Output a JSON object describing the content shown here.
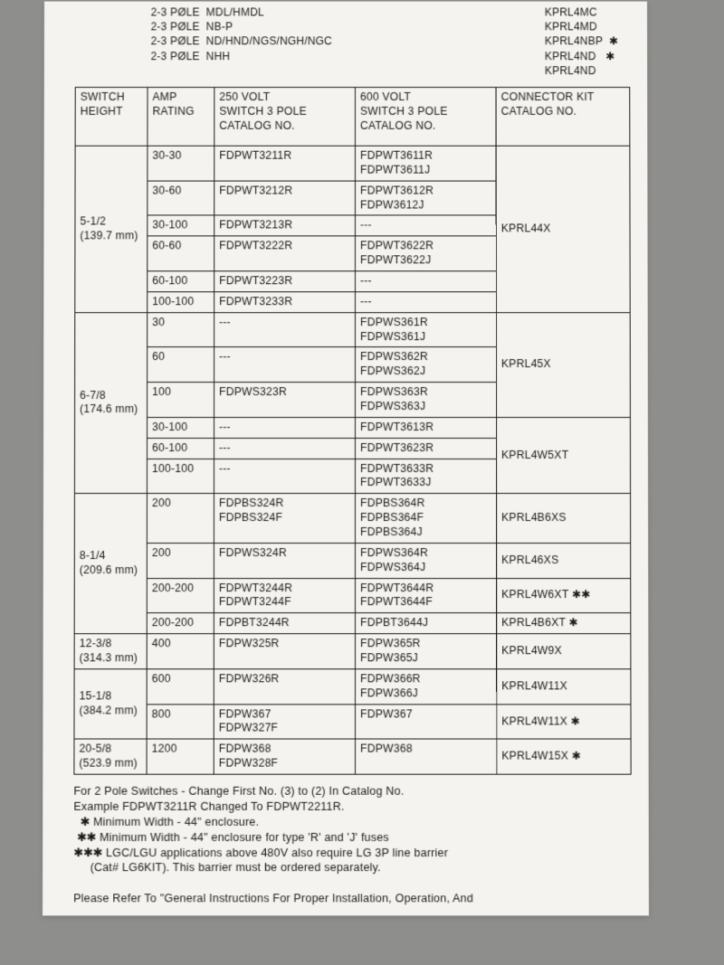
{
  "top_left": "2-3 PØLE  MDL/HMDL\n2-3 PØLE  NB-P\n2-3 PØLE  ND/HND/NGS/NGH/NGC\n2-3 PØLE  NHH",
  "top_right": "KPRL4MC\nKPRL4MD\nKPRL4NBP  ✱\nKPRL4ND   ✱\nKPRL4ND",
  "headers": {
    "c1": "SWITCH\nHEIGHT",
    "c2": "AMP\nRATING",
    "c3": "250 VOLT\nSWITCH 3 POLE\nCATALOG NO.",
    "c4": "600 VOLT\nSWITCH 3 POLE\nCATALOG NO.",
    "c5": "CONNECTOR KIT\nCATALOG NO."
  },
  "groups": [
    {
      "height": "5-1/2\n(139.7 mm)",
      "kit_splits": [
        {
          "kit": "KPRL44X",
          "rows": [
            {
              "amp": "30-30",
              "v250": "FDPWT3211R",
              "v600": "FDPWT3611R\nFDPWT3611J"
            },
            {
              "amp": "30-60",
              "v250": "FDPWT3212R",
              "v600": "FDPWT3612R\nFDPW3612J"
            },
            {
              "amp": "30-100",
              "v250": "FDPWT3213R",
              "v600": "---"
            },
            {
              "amp": "60-60",
              "v250": "FDPWT3222R",
              "v600": "FDPWT3622R\nFDPWT3622J"
            },
            {
              "amp": "60-100",
              "v250": "FDPWT3223R",
              "v600": "---"
            },
            {
              "amp": "100-100",
              "v250": "FDPWT3233R",
              "v600": "---"
            }
          ]
        }
      ]
    },
    {
      "height": "6-7/8\n(174.6 mm)",
      "kit_splits": [
        {
          "kit": "KPRL45X",
          "rows": [
            {
              "amp": "30",
              "v250": "---",
              "v600": "FDPWS361R\nFDPWS361J"
            },
            {
              "amp": "60",
              "v250": "---",
              "v600": "FDPWS362R\nFDPWS362J"
            },
            {
              "amp": "100",
              "v250": "FDPWS323R",
              "v600": "FDPWS363R\nFDPWS363J"
            }
          ]
        },
        {
          "kit": "KPRL4W5XT",
          "rows": [
            {
              "amp": "30-100",
              "v250": "---",
              "v600": "FDPWT3613R"
            },
            {
              "amp": "60-100",
              "v250": "---",
              "v600": "FDPWT3623R"
            },
            {
              "amp": "100-100",
              "v250": "---",
              "v600": "FDPWT3633R\nFDPWT3633J"
            }
          ]
        }
      ]
    },
    {
      "height": "8-1/4\n(209.6 mm)",
      "kit_splits": [
        {
          "kit": "KPRL4B6XS",
          "rows": [
            {
              "amp": "200",
              "v250": "FDPBS324R\nFDPBS324F",
              "v600": "FDPBS364R\nFDPBS364F\nFDPBS364J"
            }
          ]
        },
        {
          "kit": "KPRL46XS",
          "rows": [
            {
              "amp": "200",
              "v250": "FDPWS324R",
              "v600": "FDPWS364R\nFDPWS364J"
            }
          ]
        },
        {
          "kit": "KPRL4W6XT  ✱✱",
          "rows": [
            {
              "amp": "200-200",
              "v250": "FDPWT3244R\nFDPWT3244F",
              "v600": "FDPWT3644R\nFDPWT3644F"
            }
          ]
        },
        {
          "kit": "KPRL4B6XT  ✱",
          "rows": [
            {
              "amp": "200-200",
              "v250": "FDPBT3244R",
              "v600": "FDPBT3644J"
            }
          ]
        }
      ]
    },
    {
      "height": "12-3/8\n(314.3 mm)",
      "kit_splits": [
        {
          "kit": "KPRL4W9X",
          "rows": [
            {
              "amp": "400",
              "v250": "FDPW325R",
              "v600": "FDPW365R\nFDPW365J"
            }
          ]
        }
      ]
    },
    {
      "height": "15-1/8\n(384.2 mm)",
      "kit_splits": [
        {
          "kit": "KPRL4W11X",
          "rows": [
            {
              "amp": "600",
              "v250": "FDPW326R",
              "v600": "FDPW366R\nFDPW366J"
            }
          ]
        },
        {
          "kit": "KPRL4W11X  ✱",
          "rows": [
            {
              "amp": "800",
              "v250": "FDPW367\nFDPW327F",
              "v600": "FDPW367"
            }
          ]
        }
      ]
    },
    {
      "height": "20-5/8\n(523.9 mm)",
      "kit_splits": [
        {
          "kit": "KPRL4W15X  ✱",
          "rows": [
            {
              "amp": "1200",
              "v250": "FDPW368\nFDPW328F",
              "v600": "FDPW368"
            }
          ]
        }
      ]
    }
  ],
  "footnotes": "For 2 Pole Switches - Change First No. (3) to (2) In Catalog No.\nExample FDPWT3211R Changed To FDPWT2211R.\n  ✱ Minimum Width - 44\" enclosure.\n ✱✱ Minimum Width - 44\" enclosure for type 'R' and 'J' fuses\n✱✱✱ LGC/LGU applications above 480V also require LG 3P line barrier\n     (Cat# LG6KIT). This barrier must be ordered separately.\n\nPlease Refer To \"General Instructions For Proper Installation, Operation, And"
}
